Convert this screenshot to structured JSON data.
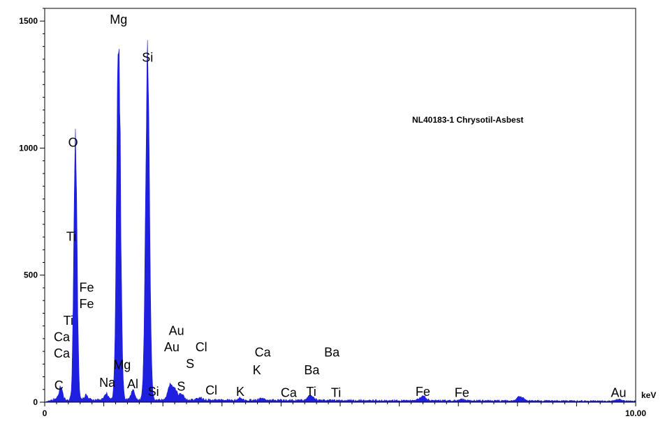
{
  "chart_data": {
    "type": "area",
    "title": "",
    "annotation": "NL40183-1 Chrysotil-Asbest",
    "xlabel": "keV",
    "ylabel": "",
    "xlim": [
      0,
      10
    ],
    "ylim": [
      0,
      1550
    ],
    "x_tick_labels": [
      {
        "x": 0,
        "label": "0"
      },
      {
        "x": 10,
        "label": "10.00"
      }
    ],
    "y_tick_labels": [
      {
        "y": 0,
        "label": "0"
      },
      {
        "y": 500,
        "label": "500"
      },
      {
        "y": 1000,
        "label": "1000"
      },
      {
        "y": 1500,
        "label": "1500"
      }
    ],
    "x_minor_step": 0.2,
    "y_minor_step": 50,
    "series_color": "#1f1fe0",
    "background": 12,
    "peaks": [
      {
        "x": 0.27,
        "h": 50,
        "w": 0.03
      },
      {
        "x": 0.52,
        "h": 990,
        "w": 0.028
      },
      {
        "x": 0.7,
        "h": 20,
        "w": 0.03
      },
      {
        "x": 1.04,
        "h": 25,
        "w": 0.03
      },
      {
        "x": 1.25,
        "h": 1470,
        "w": 0.033
      },
      {
        "x": 1.49,
        "h": 40,
        "w": 0.03
      },
      {
        "x": 1.74,
        "h": 1320,
        "w": 0.034
      },
      {
        "x": 2.12,
        "h": 55,
        "w": 0.04
      },
      {
        "x": 2.2,
        "h": 40,
        "w": 0.04
      },
      {
        "x": 2.31,
        "h": 25,
        "w": 0.04
      },
      {
        "x": 2.62,
        "h": 10,
        "w": 0.04
      },
      {
        "x": 3.31,
        "h": 8,
        "w": 0.04
      },
      {
        "x": 3.69,
        "h": 10,
        "w": 0.04
      },
      {
        "x": 4.51,
        "h": 15,
        "w": 0.05
      },
      {
        "x": 4.47,
        "h": 8,
        "w": 0.04
      },
      {
        "x": 6.4,
        "h": 18,
        "w": 0.05
      },
      {
        "x": 7.06,
        "h": 6,
        "w": 0.05
      },
      {
        "x": 8.05,
        "h": 17,
        "w": 0.05
      },
      {
        "x": 9.71,
        "h": 6,
        "w": 0.05
      }
    ],
    "element_labels": [
      {
        "text": "Mg",
        "x": 1.25,
        "y": 1490
      },
      {
        "text": "Si",
        "x": 1.74,
        "y": 1340
      },
      {
        "text": "O",
        "x": 0.48,
        "y": 1005
      },
      {
        "text": "Ti",
        "x": 0.45,
        "y": 635
      },
      {
        "text": "Fe",
        "x": 0.71,
        "y": 435
      },
      {
        "text": "Fe",
        "x": 0.71,
        "y": 370
      },
      {
        "text": "Ti",
        "x": 0.4,
        "y": 305
      },
      {
        "text": "Ca",
        "x": 0.29,
        "y": 240
      },
      {
        "text": "Ca",
        "x": 0.29,
        "y": 175
      },
      {
        "text": "C",
        "x": 0.24,
        "y": 50
      },
      {
        "text": "Au",
        "x": 2.23,
        "y": 265
      },
      {
        "text": "Au",
        "x": 2.15,
        "y": 200
      },
      {
        "text": "Cl",
        "x": 2.65,
        "y": 200
      },
      {
        "text": "S",
        "x": 2.46,
        "y": 135
      },
      {
        "text": "Mg",
        "x": 1.31,
        "y": 130
      },
      {
        "text": "Na",
        "x": 1.06,
        "y": 60
      },
      {
        "text": "Al",
        "x": 1.49,
        "y": 55
      },
      {
        "text": "Si",
        "x": 1.84,
        "y": 25
      },
      {
        "text": "S",
        "x": 2.31,
        "y": 45
      },
      {
        "text": "Cl",
        "x": 2.82,
        "y": 30
      },
      {
        "text": "K",
        "x": 3.31,
        "y": 25
      },
      {
        "text": "Ca",
        "x": 3.69,
        "y": 180
      },
      {
        "text": "K",
        "x": 3.59,
        "y": 110
      },
      {
        "text": "Ca",
        "x": 4.13,
        "y": 20
      },
      {
        "text": "Ba",
        "x": 4.86,
        "y": 180
      },
      {
        "text": "Ba",
        "x": 4.52,
        "y": 110
      },
      {
        "text": "Ti",
        "x": 4.51,
        "y": 25
      },
      {
        "text": "Ti",
        "x": 4.93,
        "y": 20
      },
      {
        "text": "Fe",
        "x": 6.4,
        "y": 25
      },
      {
        "text": "Fe",
        "x": 7.06,
        "y": 20
      },
      {
        "text": "Au",
        "x": 9.71,
        "y": 20
      }
    ]
  }
}
